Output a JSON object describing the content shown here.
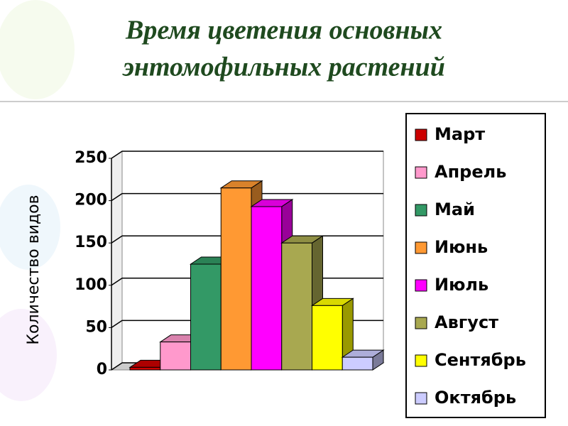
{
  "chart_data": {
    "type": "bar3d",
    "title": [
      "Время цветения основных",
      "энтомофильных растений"
    ],
    "y_label": "Количество видов",
    "series": [
      {
        "name": "Март",
        "color": "#cc0000",
        "values": [
          3
        ]
      },
      {
        "name": "Апрель",
        "color": "#ff99cc",
        "values": [
          33
        ]
      },
      {
        "name": "Май",
        "color": "#339966",
        "values": [
          125
        ]
      },
      {
        "name": "Июнь",
        "color": "#ff9933",
        "values": [
          215
        ]
      },
      {
        "name": "Июль",
        "color": "#ff00ff",
        "values": [
          193
        ]
      },
      {
        "name": "Август",
        "color": "#a8a850",
        "values": [
          150
        ]
      },
      {
        "name": "Сентябрь",
        "color": "#ffff00",
        "values": [
          76
        ]
      },
      {
        "name": "Октябрь",
        "color": "#ccccff",
        "values": [
          15
        ]
      }
    ],
    "ylim": [
      0,
      250
    ],
    "yticks": [
      0,
      50,
      100,
      150,
      200,
      250
    ],
    "grid": true
  }
}
